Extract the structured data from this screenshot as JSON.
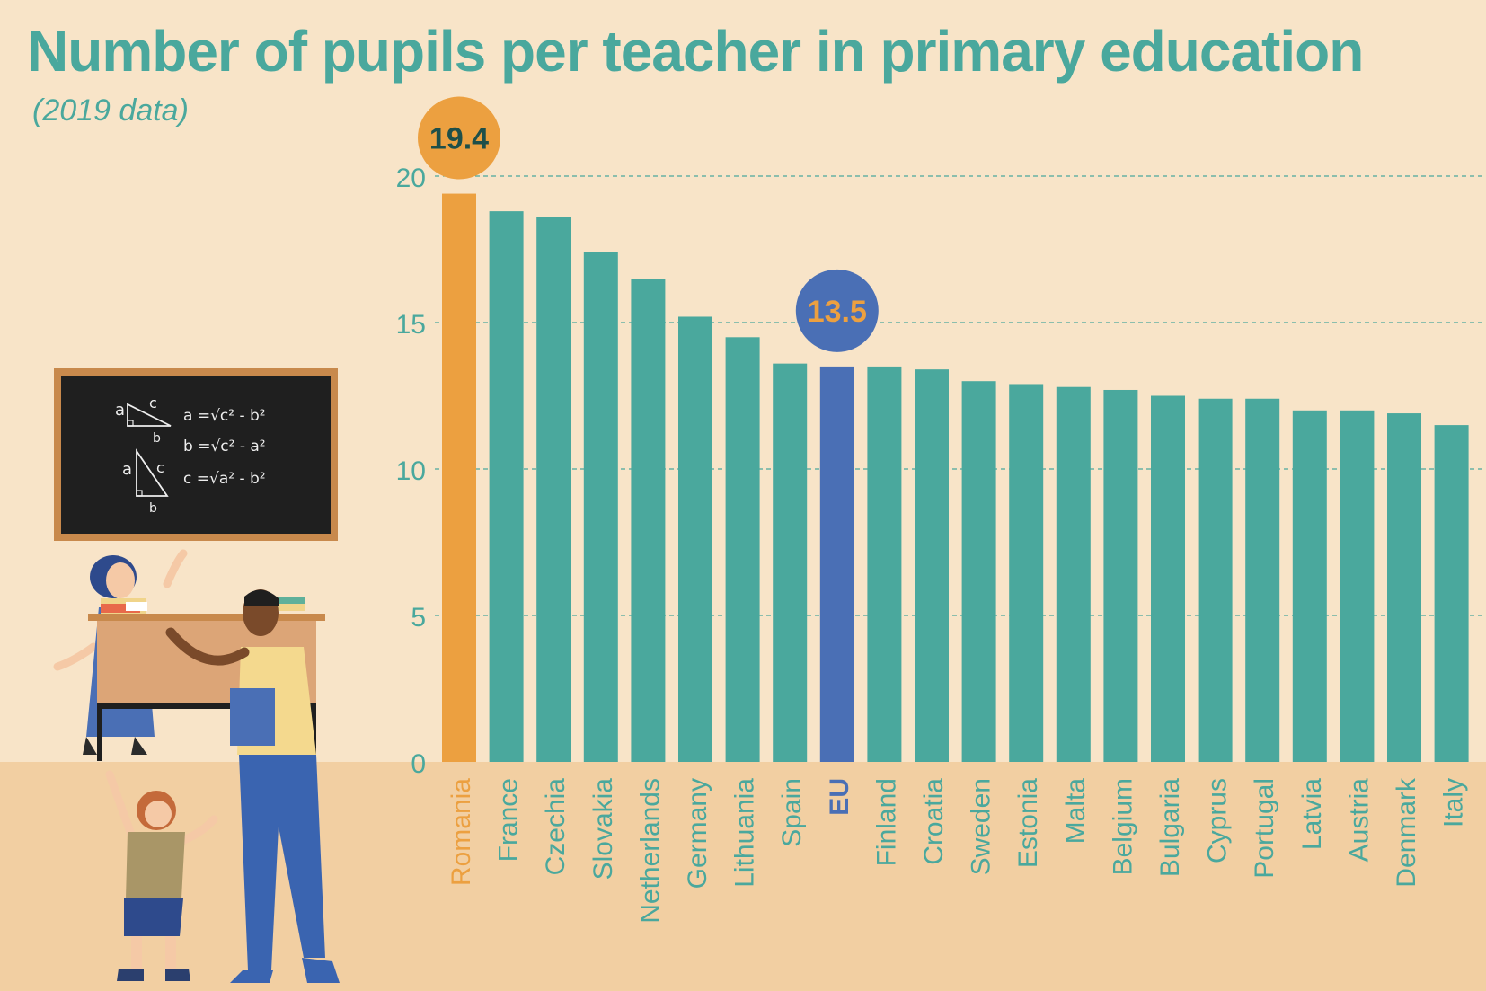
{
  "header": {
    "title": "Number of pupils per teacher in primary education",
    "subtitle": "(2019 data)"
  },
  "colors": {
    "background": "#f8e4c8",
    "floor": "#f2cfa2",
    "teal": "#4aa89d",
    "highlight_max": "#eca040",
    "highlight_eu": "#4a6fb5"
  },
  "chart_data": {
    "type": "bar",
    "categories": [
      "Romania",
      "France",
      "Czechia",
      "Slovakia",
      "Netherlands",
      "Germany",
      "Lithuania",
      "Spain",
      "EU",
      "Finland",
      "Croatia",
      "Sweden",
      "Estonia",
      "Malta",
      "Belgium",
      "Bulgaria",
      "Cyprus",
      "Portugal",
      "Latvia",
      "Austria",
      "Denmark",
      "Italy"
    ],
    "values": [
      19.4,
      18.8,
      18.6,
      17.4,
      16.5,
      15.2,
      14.5,
      13.6,
      13.5,
      13.5,
      13.4,
      13.0,
      12.9,
      12.8,
      12.7,
      12.5,
      12.4,
      12.4,
      12.0,
      12.0,
      11.9,
      11.5
    ],
    "highlights": [
      {
        "category": "Romania",
        "label": "19.4",
        "color": "#eca040",
        "bubble_color": "#eca040",
        "label_color": "#1e4f49"
      },
      {
        "category": "EU",
        "label": "13.5",
        "color": "#4a6fb5",
        "bubble_color": "#4a6fb5",
        "label_color": "#eca040"
      }
    ],
    "yticks": [
      0,
      5,
      10,
      15,
      20
    ],
    "ylim": [
      0,
      20
    ],
    "grid": true,
    "xlabel": "",
    "ylabel": ""
  },
  "illustration": {
    "blackboard": {
      "formulas": [
        "a =√c² - b²",
        "b =√c² - a²",
        "c =√a² - b²"
      ],
      "triangle_labels": [
        "a",
        "c",
        "b",
        "a",
        "c",
        "b"
      ]
    }
  }
}
